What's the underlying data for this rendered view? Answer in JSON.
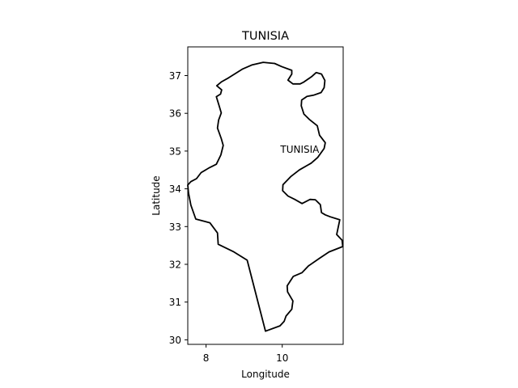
{
  "map": {
    "title": "TUNISIA",
    "annotation": {
      "text": "TUNISIA",
      "lon": 9.95,
      "lat": 35.0
    },
    "xlabel": "Longitude",
    "ylabel": "Latitude",
    "xlim": [
      7.52,
      11.6
    ],
    "ylim": [
      29.88,
      37.76
    ],
    "xticks": [
      {
        "value": 8,
        "label": "8"
      },
      {
        "value": 10,
        "label": "10"
      }
    ],
    "yticks": [
      {
        "value": 30,
        "label": "30"
      },
      {
        "value": 31,
        "label": "31"
      },
      {
        "value": 32,
        "label": "32"
      },
      {
        "value": 33,
        "label": "33"
      },
      {
        "value": 34,
        "label": "34"
      },
      {
        "value": 35,
        "label": "35"
      },
      {
        "value": 36,
        "label": "36"
      },
      {
        "value": 37,
        "label": "37"
      }
    ],
    "outline_color": "#000000",
    "border": [
      [
        9.56,
        30.23
      ],
      [
        9.94,
        30.37
      ],
      [
        10.05,
        30.49
      ],
      [
        10.1,
        30.63
      ],
      [
        10.25,
        30.81
      ],
      [
        10.28,
        31.03
      ],
      [
        10.14,
        31.27
      ],
      [
        10.13,
        31.43
      ],
      [
        10.29,
        31.68
      ],
      [
        10.52,
        31.78
      ],
      [
        10.69,
        31.96
      ],
      [
        10.98,
        32.16
      ],
      [
        11.23,
        32.33
      ],
      [
        11.59,
        32.47
      ],
      [
        11.57,
        32.64
      ],
      [
        11.43,
        32.79
      ],
      [
        11.51,
        33.18
      ],
      [
        11.26,
        33.26
      ],
      [
        11.13,
        33.31
      ],
      [
        11.03,
        33.37
      ],
      [
        11.0,
        33.58
      ],
      [
        10.87,
        33.71
      ],
      [
        10.73,
        33.72
      ],
      [
        10.52,
        33.61
      ],
      [
        10.33,
        33.72
      ],
      [
        10.15,
        33.81
      ],
      [
        10.01,
        33.95
      ],
      [
        10.02,
        34.11
      ],
      [
        10.22,
        34.32
      ],
      [
        10.45,
        34.5
      ],
      [
        10.76,
        34.68
      ],
      [
        10.93,
        34.83
      ],
      [
        11.1,
        35.07
      ],
      [
        11.13,
        35.22
      ],
      [
        10.98,
        35.42
      ],
      [
        10.92,
        35.67
      ],
      [
        10.72,
        35.83
      ],
      [
        10.57,
        35.98
      ],
      [
        10.5,
        36.2
      ],
      [
        10.51,
        36.35
      ],
      [
        10.65,
        36.45
      ],
      [
        10.82,
        36.48
      ],
      [
        11.02,
        36.55
      ],
      [
        11.1,
        36.68
      ],
      [
        11.12,
        36.87
      ],
      [
        11.03,
        37.04
      ],
      [
        10.89,
        37.08
      ],
      [
        10.77,
        36.97
      ],
      [
        10.57,
        36.83
      ],
      [
        10.47,
        36.78
      ],
      [
        10.28,
        36.78
      ],
      [
        10.15,
        36.88
      ],
      [
        10.25,
        37.04
      ],
      [
        10.25,
        37.14
      ],
      [
        9.98,
        37.24
      ],
      [
        9.8,
        37.32
      ],
      [
        9.71,
        37.33
      ],
      [
        9.5,
        37.35
      ],
      [
        9.2,
        37.28
      ],
      [
        8.95,
        37.17
      ],
      [
        8.59,
        36.94
      ],
      [
        8.4,
        36.83
      ],
      [
        8.28,
        36.73
      ],
      [
        8.41,
        36.62
      ],
      [
        8.38,
        36.51
      ],
      [
        8.27,
        36.44
      ],
      [
        8.34,
        36.21
      ],
      [
        8.4,
        36.01
      ],
      [
        8.33,
        35.82
      ],
      [
        8.3,
        35.61
      ],
      [
        8.4,
        35.33
      ],
      [
        8.45,
        35.15
      ],
      [
        8.39,
        34.9
      ],
      [
        8.27,
        34.65
      ],
      [
        8.09,
        34.56
      ],
      [
        7.87,
        34.43
      ],
      [
        7.75,
        34.27
      ],
      [
        7.6,
        34.19
      ],
      [
        7.52,
        34.1
      ],
      [
        7.54,
        33.89
      ],
      [
        7.6,
        33.57
      ],
      [
        7.73,
        33.2
      ],
      [
        8.1,
        33.1
      ],
      [
        8.3,
        32.83
      ],
      [
        8.32,
        32.53
      ],
      [
        8.73,
        32.33
      ],
      [
        9.08,
        32.11
      ],
      [
        9.56,
        30.23
      ]
    ]
  }
}
